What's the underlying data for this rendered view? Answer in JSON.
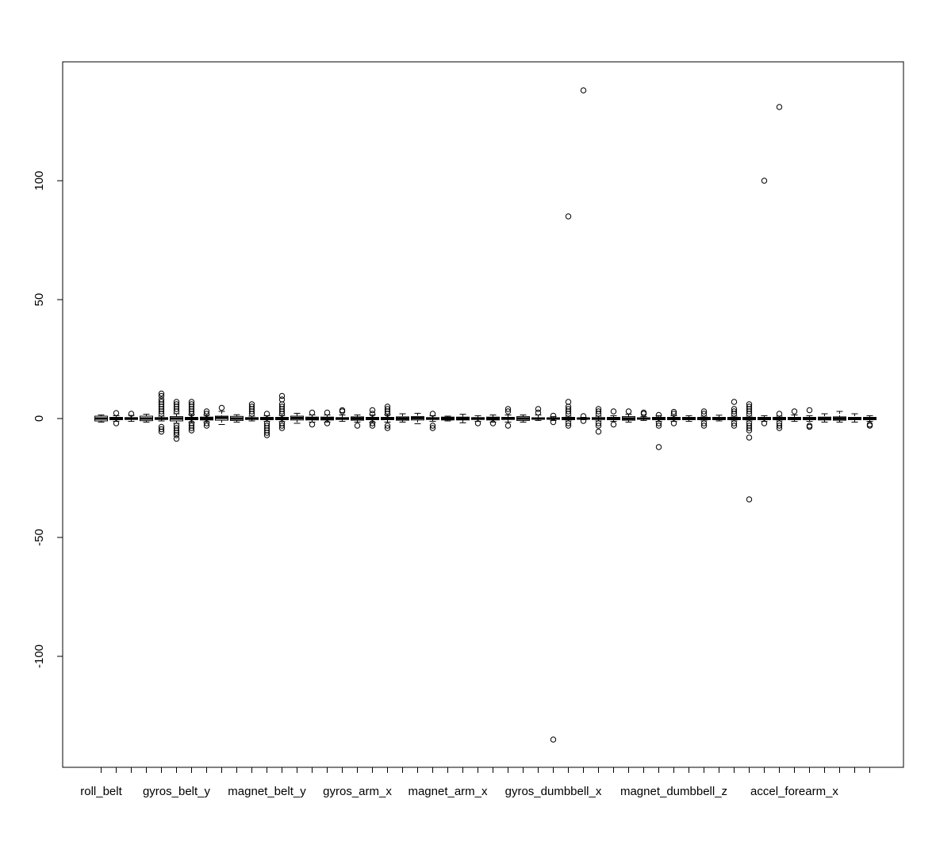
{
  "chart_data": {
    "type": "boxplot",
    "title": "",
    "xlabel": "",
    "ylabel": "",
    "ylim": [
      -140,
      150
    ],
    "y_ticks": [
      -100,
      -50,
      0,
      50,
      100
    ],
    "x_tick_labels": [
      {
        "index": 1,
        "label": "roll_belt"
      },
      {
        "index": 6,
        "label": "gyros_belt_y"
      },
      {
        "index": 12,
        "label": "magnet_belt_y"
      },
      {
        "index": 18,
        "label": "gyros_arm_x"
      },
      {
        "index": 24,
        "label": "magnet_arm_x"
      },
      {
        "index": 31,
        "label": "gyros_dumbbell_x"
      },
      {
        "index": 39,
        "label": "magnet_dumbbell_z"
      },
      {
        "index": 47,
        "label": "accel_forearm_x"
      }
    ],
    "boxes": [
      {
        "q1": -1.0,
        "median": 0.0,
        "q3": 1.0,
        "low": -1.5,
        "high": 1.5,
        "outliers": []
      },
      {
        "q1": -0.5,
        "median": 0.0,
        "q3": 0.5,
        "low": -1.2,
        "high": 1.2,
        "outliers": [
          -2,
          2.3
        ]
      },
      {
        "q1": -0.4,
        "median": 0.0,
        "q3": 0.4,
        "low": -1.2,
        "high": 1.3,
        "outliers": [
          2
        ]
      },
      {
        "q1": -0.9,
        "median": 0.0,
        "q3": 1.0,
        "low": -1.5,
        "high": 1.8,
        "outliers": []
      },
      {
        "q1": -0.4,
        "median": 0.0,
        "q3": 0.4,
        "low": -1.0,
        "high": 1.0,
        "outliers": [
          -5.5,
          -4.5,
          -3.5,
          2,
          3,
          4,
          5,
          6,
          7,
          8,
          9.5,
          10.5
        ]
      },
      {
        "q1": -1.0,
        "median": 0.0,
        "q3": 0.8,
        "low": -2.0,
        "high": 2.0,
        "outliers": [
          -8.5,
          -7,
          -6,
          -5,
          -4,
          -3,
          3,
          4,
          5,
          6,
          7
        ]
      },
      {
        "q1": -0.5,
        "median": 0.0,
        "q3": 0.5,
        "low": -1.5,
        "high": 1.5,
        "outliers": [
          -5,
          -4,
          -3,
          -2,
          2,
          3,
          4,
          5,
          6,
          7
        ]
      },
      {
        "q1": -0.6,
        "median": 0.0,
        "q3": 0.6,
        "low": -1.4,
        "high": 1.4,
        "outliers": [
          -3,
          -2,
          2,
          3
        ]
      },
      {
        "q1": -0.7,
        "median": 0.3,
        "q3": 1.0,
        "low": -2.5,
        "high": 3.0,
        "outliers": [
          4.5
        ]
      },
      {
        "q1": -0.8,
        "median": 0.0,
        "q3": 0.9,
        "low": -1.5,
        "high": 1.6,
        "outliers": []
      },
      {
        "q1": -0.4,
        "median": 0.0,
        "q3": 0.4,
        "low": -1.0,
        "high": 1.0,
        "outliers": [
          2,
          3,
          4,
          5,
          6
        ]
      },
      {
        "q1": -0.5,
        "median": 0.0,
        "q3": 0.5,
        "low": -1.2,
        "high": 1.2,
        "outliers": [
          -7,
          -6,
          -5,
          -4,
          -3,
          -2,
          2
        ]
      },
      {
        "q1": -0.5,
        "median": 0.0,
        "q3": 0.5,
        "low": -1.3,
        "high": 1.3,
        "outliers": [
          -4,
          -3,
          -2,
          2,
          3,
          4,
          5,
          6,
          8,
          9.5
        ]
      },
      {
        "q1": -0.6,
        "median": 0.2,
        "q3": 1.0,
        "low": -2.0,
        "high": 2.2,
        "outliers": []
      },
      {
        "q1": -0.6,
        "median": 0.0,
        "q3": 0.6,
        "low": -1.5,
        "high": 1.5,
        "outliers": [
          -2.5,
          2.5
        ]
      },
      {
        "q1": -0.6,
        "median": 0.0,
        "q3": 0.6,
        "low": -1.5,
        "high": 1.5,
        "outliers": [
          -2,
          2.5
        ]
      },
      {
        "q1": -0.4,
        "median": 0.0,
        "q3": 0.4,
        "low": -1.2,
        "high": 1.5,
        "outliers": [
          3,
          3.5
        ]
      },
      {
        "q1": -0.7,
        "median": 0.0,
        "q3": 0.7,
        "low": -1.5,
        "high": 1.5,
        "outliers": [
          -3
        ]
      },
      {
        "q1": -0.5,
        "median": 0.0,
        "q3": 0.5,
        "low": -1.5,
        "high": 1.5,
        "outliers": [
          -3,
          -2,
          2,
          3.5
        ]
      },
      {
        "q1": -0.5,
        "median": 0.0,
        "q3": 0.5,
        "low": -1.5,
        "high": 1.5,
        "outliers": [
          -4,
          -3,
          2,
          3,
          4,
          5
        ]
      },
      {
        "q1": -0.7,
        "median": 0.0,
        "q3": 0.7,
        "low": -1.5,
        "high": 2.0,
        "outliers": []
      },
      {
        "q1": -0.6,
        "median": 0.2,
        "q3": 0.8,
        "low": -2.2,
        "high": 2.2,
        "outliers": []
      },
      {
        "q1": -0.4,
        "median": 0.0,
        "q3": 0.4,
        "low": -1.2,
        "high": 1.2,
        "outliers": [
          -4,
          -3,
          2
        ]
      },
      {
        "q1": -0.6,
        "median": 0.0,
        "q3": 0.6,
        "low": -1.0,
        "high": 1.0,
        "outliers": []
      },
      {
        "q1": -0.6,
        "median": 0.0,
        "q3": 0.6,
        "low": -1.8,
        "high": 1.8,
        "outliers": []
      },
      {
        "q1": -0.4,
        "median": 0.0,
        "q3": 0.4,
        "low": -1.2,
        "high": 1.2,
        "outliers": [
          -2
        ]
      },
      {
        "q1": -0.6,
        "median": 0.0,
        "q3": 0.6,
        "low": -1.5,
        "high": 1.5,
        "outliers": [
          -2
        ]
      },
      {
        "q1": -0.4,
        "median": 0.0,
        "q3": 0.5,
        "low": -1.5,
        "high": 1.5,
        "outliers": [
          -3,
          3,
          4
        ]
      },
      {
        "q1": -0.8,
        "median": 0.0,
        "q3": 0.8,
        "low": -1.5,
        "high": 1.5,
        "outliers": []
      },
      {
        "q1": -0.3,
        "median": 0.0,
        "q3": 0.3,
        "low": -0.8,
        "high": 1.5,
        "outliers": [
          2.5,
          4
        ]
      },
      {
        "q1": -0.3,
        "median": 0.0,
        "q3": 0.3,
        "low": -0.8,
        "high": 0.8,
        "outliers": [
          -135,
          -1.5,
          1.2
        ]
      },
      {
        "q1": -0.5,
        "median": 0.0,
        "q3": 0.5,
        "low": -1.0,
        "high": 1.0,
        "outliers": [
          -3,
          -2,
          2,
          3,
          4,
          5,
          7,
          85
        ]
      },
      {
        "q1": -0.2,
        "median": 0.0,
        "q3": 0.2,
        "low": -0.5,
        "high": 0.5,
        "outliers": [
          -1,
          1,
          138
        ]
      },
      {
        "q1": -0.4,
        "median": 0.0,
        "q3": 0.4,
        "low": -1.0,
        "high": 1.0,
        "outliers": [
          -5.5,
          -3,
          -2,
          2,
          3,
          4
        ]
      },
      {
        "q1": -0.5,
        "median": 0.0,
        "q3": 0.5,
        "low": -1.2,
        "high": 1.2,
        "outliers": [
          -2.5,
          3
        ]
      },
      {
        "q1": -0.7,
        "median": 0.0,
        "q3": 0.8,
        "low": -1.5,
        "high": 1.8,
        "outliers": [
          3
        ]
      },
      {
        "q1": -0.3,
        "median": 0.0,
        "q3": 0.3,
        "low": -0.8,
        "high": 0.8,
        "outliers": [
          2,
          2.5
        ]
      },
      {
        "q1": -0.5,
        "median": 0.0,
        "q3": 0.5,
        "low": -1.2,
        "high": 1.2,
        "outliers": [
          -12,
          -3,
          -2,
          1.5
        ]
      },
      {
        "q1": -0.5,
        "median": 0.0,
        "q3": 0.5,
        "low": -1.2,
        "high": 1.2,
        "outliers": [
          -2,
          2,
          2.8
        ]
      },
      {
        "q1": -0.5,
        "median": 0.0,
        "q3": 0.5,
        "low": -1.2,
        "high": 1.2,
        "outliers": []
      },
      {
        "q1": -0.5,
        "median": 0.0,
        "q3": 0.5,
        "low": -1.0,
        "high": 1.0,
        "outliers": [
          -3,
          -2,
          2,
          3
        ]
      },
      {
        "q1": -0.5,
        "median": 0.0,
        "q3": 0.5,
        "low": -1.0,
        "high": 1.4,
        "outliers": []
      },
      {
        "q1": -0.5,
        "median": 0.0,
        "q3": 0.5,
        "low": -1.0,
        "high": 1.0,
        "outliers": [
          -3,
          -2,
          2,
          3,
          4,
          7
        ]
      },
      {
        "q1": -0.5,
        "median": 0.0,
        "q3": 0.5,
        "low": -1.0,
        "high": 1.0,
        "outliers": [
          -34,
          -8,
          -5,
          -4,
          -3,
          -2,
          2,
          3,
          4,
          5,
          6
        ]
      },
      {
        "q1": -0.5,
        "median": 0.0,
        "q3": 0.5,
        "low": -1.2,
        "high": 1.2,
        "outliers": [
          -2,
          100
        ]
      },
      {
        "q1": -0.5,
        "median": 0.0,
        "q3": 0.5,
        "low": -1.0,
        "high": 1.0,
        "outliers": [
          -4,
          -3,
          -2,
          2,
          131
        ]
      },
      {
        "q1": -0.5,
        "median": 0.0,
        "q3": 0.5,
        "low": -1.2,
        "high": 1.5,
        "outliers": [
          3
        ]
      },
      {
        "q1": -0.5,
        "median": 0.0,
        "q3": 0.5,
        "low": -1.2,
        "high": 1.2,
        "outliers": [
          -3.5,
          -3,
          3.5
        ]
      },
      {
        "q1": -0.6,
        "median": 0.0,
        "q3": 0.6,
        "low": -1.5,
        "high": 2.0,
        "outliers": []
      },
      {
        "q1": -0.7,
        "median": 0.0,
        "q3": 0.7,
        "low": -1.5,
        "high": 3.0,
        "outliers": []
      },
      {
        "q1": -0.5,
        "median": 0.0,
        "q3": 0.5,
        "low": -1.5,
        "high": 2.0,
        "outliers": []
      },
      {
        "q1": -0.5,
        "median": 0.0,
        "q3": 0.5,
        "low": -1.2,
        "high": 1.2,
        "outliers": [
          -3,
          -2.5
        ]
      }
    ]
  }
}
